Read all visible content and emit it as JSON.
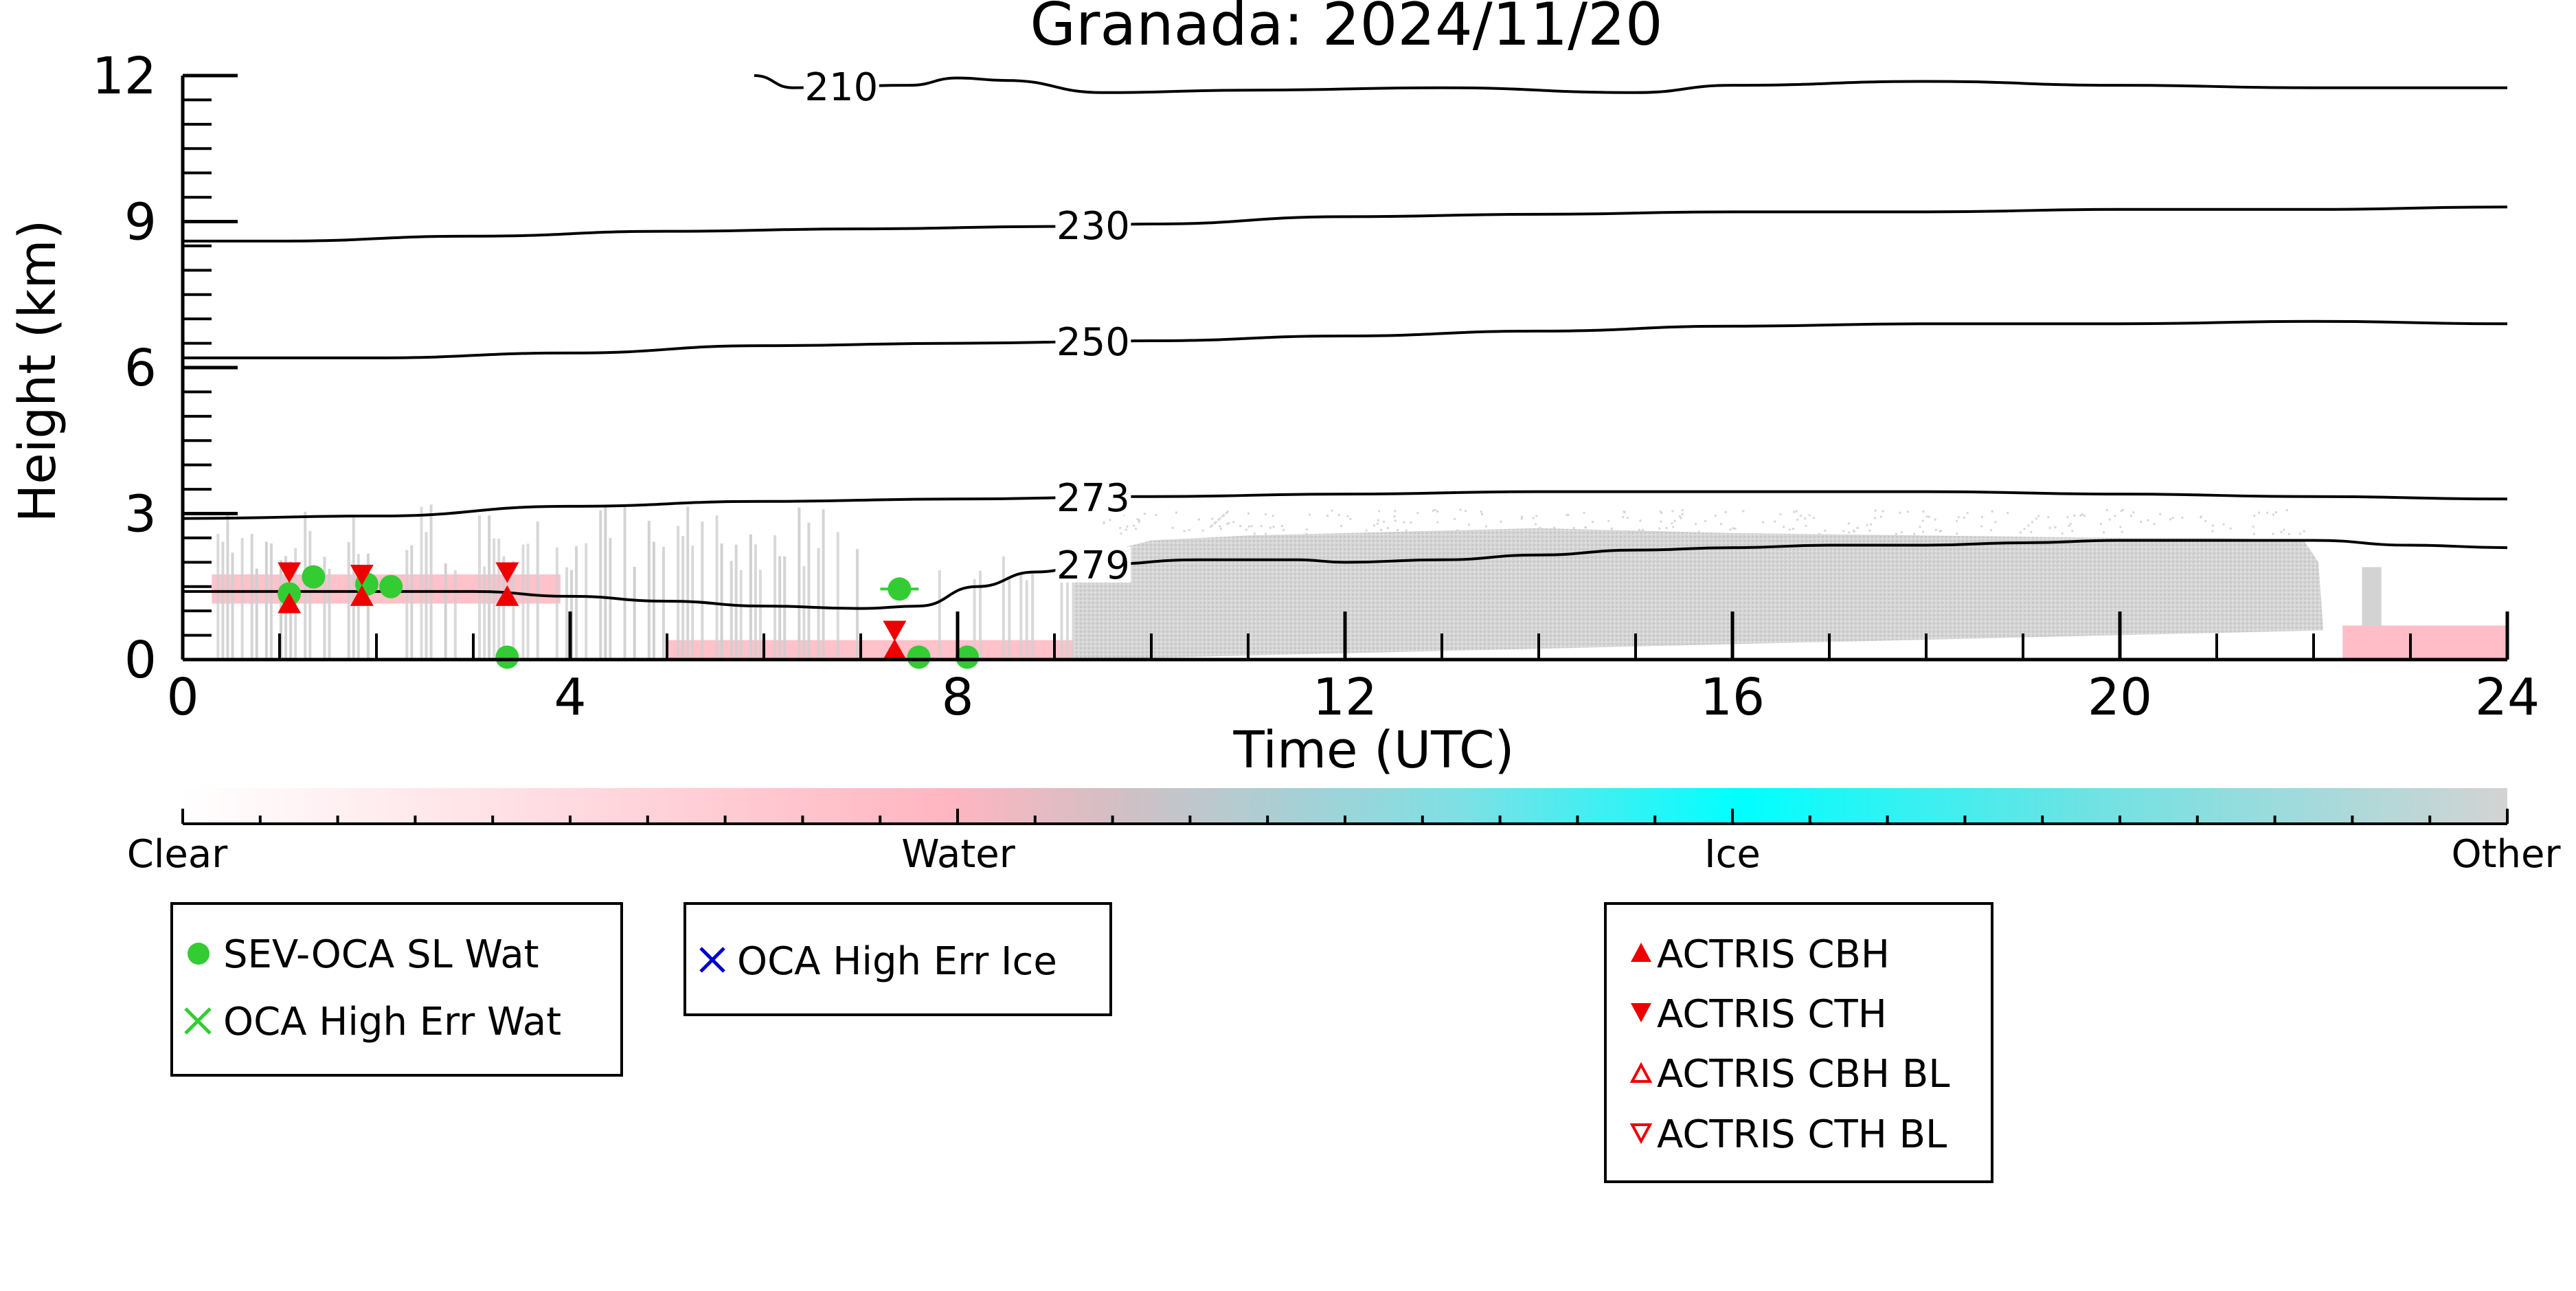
{
  "chart_data": {
    "type": "scatter",
    "title": "Granada: 2024/11/20",
    "xlabel": "Time (UTC)",
    "ylabel": "Height (km)",
    "xlim": [
      0,
      24
    ],
    "ylim": [
      0,
      12
    ],
    "xticks": [
      0,
      4,
      8,
      12,
      16,
      20,
      24
    ],
    "yticks": [
      0,
      3,
      6,
      9,
      12
    ],
    "grid": false,
    "colorbar": {
      "labels": [
        "Clear",
        "Water",
        "Ice",
        "Other"
      ],
      "colors": [
        "#ffffff",
        "#ffb6c1",
        "#00ffff",
        "#d3d3d3"
      ]
    },
    "contours": [
      {
        "label": "210",
        "label_x": 6.8,
        "points": [
          [
            5.9,
            12.0
          ],
          [
            6.3,
            11.75
          ],
          [
            7.5,
            11.8
          ],
          [
            8.0,
            11.95
          ],
          [
            8.5,
            11.9
          ],
          [
            9.5,
            11.65
          ],
          [
            11,
            11.7
          ],
          [
            13,
            11.75
          ],
          [
            15,
            11.65
          ],
          [
            16,
            11.8
          ],
          [
            18,
            11.88
          ],
          [
            20,
            11.8
          ],
          [
            22,
            11.75
          ],
          [
            24,
            11.75
          ]
        ]
      },
      {
        "label": "230",
        "label_x": 9.4,
        "points": [
          [
            0,
            8.6
          ],
          [
            1,
            8.6
          ],
          [
            3,
            8.7
          ],
          [
            5,
            8.8
          ],
          [
            7,
            8.85
          ],
          [
            9,
            8.9
          ],
          [
            10,
            8.95
          ],
          [
            12,
            9.1
          ],
          [
            14,
            9.15
          ],
          [
            16,
            9.2
          ],
          [
            18,
            9.2
          ],
          [
            20,
            9.25
          ],
          [
            22,
            9.25
          ],
          [
            24,
            9.3
          ]
        ]
      },
      {
        "label": "250",
        "label_x": 9.4,
        "points": [
          [
            0,
            6.2
          ],
          [
            2,
            6.2
          ],
          [
            4,
            6.3
          ],
          [
            6,
            6.45
          ],
          [
            8,
            6.5
          ],
          [
            10,
            6.55
          ],
          [
            12,
            6.65
          ],
          [
            14,
            6.75
          ],
          [
            16,
            6.85
          ],
          [
            18,
            6.9
          ],
          [
            20,
            6.9
          ],
          [
            22,
            6.95
          ],
          [
            24,
            6.9
          ]
        ]
      },
      {
        "label": "273",
        "label_x": 9.4,
        "points": [
          [
            0,
            2.9
          ],
          [
            2,
            2.95
          ],
          [
            4,
            3.15
          ],
          [
            6,
            3.25
          ],
          [
            8,
            3.3
          ],
          [
            10,
            3.35
          ],
          [
            12,
            3.4
          ],
          [
            14,
            3.45
          ],
          [
            16,
            3.45
          ],
          [
            18,
            3.45
          ],
          [
            20,
            3.4
          ],
          [
            22,
            3.35
          ],
          [
            24,
            3.3
          ]
        ]
      },
      {
        "label": "279",
        "label_x": 9.4,
        "points": [
          [
            0,
            1.4
          ],
          [
            1.5,
            1.4
          ],
          [
            3,
            1.4
          ],
          [
            4,
            1.3
          ],
          [
            5,
            1.2
          ],
          [
            6,
            1.1
          ],
          [
            7,
            1.05
          ],
          [
            7.6,
            1.1
          ],
          [
            8.2,
            1.5
          ],
          [
            8.8,
            1.8
          ],
          [
            9.4,
            1.95
          ],
          [
            10.5,
            2.05
          ],
          [
            11.5,
            2.05
          ],
          [
            12,
            2.0
          ],
          [
            13,
            2.05
          ],
          [
            14,
            2.15
          ],
          [
            15,
            2.25
          ],
          [
            16,
            2.3
          ],
          [
            17,
            2.35
          ],
          [
            18,
            2.35
          ],
          [
            19,
            2.4
          ],
          [
            20,
            2.45
          ],
          [
            21,
            2.45
          ],
          [
            22,
            2.45
          ],
          [
            23,
            2.35
          ],
          [
            24,
            2.3
          ]
        ]
      }
    ],
    "series": [
      {
        "name": "SEV-OCA SL Wat",
        "marker": "circle",
        "color": "#33cc33",
        "points": [
          [
            1.1,
            1.35
          ],
          [
            1.35,
            1.7
          ],
          [
            1.9,
            1.55
          ],
          [
            2.15,
            1.5
          ],
          [
            3.35,
            0.05
          ],
          [
            7.4,
            1.45
          ],
          [
            7.6,
            0.05
          ],
          [
            8.1,
            0.05
          ]
        ]
      },
      {
        "name": "OCA High Err Wat",
        "marker": "x",
        "color": "#33cc33",
        "points": []
      },
      {
        "name": "OCA High Err Ice",
        "marker": "x",
        "color": "#0000cc",
        "points": []
      },
      {
        "name": "ACTRIS CBH",
        "marker": "triangle-up",
        "color": "#ee0000",
        "points": [
          [
            1.1,
            1.15
          ],
          [
            1.85,
            1.3
          ],
          [
            3.35,
            1.3
          ],
          [
            7.35,
            0.2
          ]
        ]
      },
      {
        "name": "ACTRIS CTH",
        "marker": "triangle-down",
        "color": "#ee0000",
        "points": [
          [
            1.1,
            1.8
          ],
          [
            1.85,
            1.75
          ],
          [
            3.35,
            1.8
          ],
          [
            7.35,
            0.6
          ]
        ]
      },
      {
        "name": "ACTRIS CBH BL",
        "marker": "triangle-up-open",
        "color": "#ee0000",
        "points": []
      },
      {
        "name": "ACTRIS CTH BL",
        "marker": "triangle-down-open",
        "color": "#ee0000",
        "points": []
      }
    ]
  }
}
